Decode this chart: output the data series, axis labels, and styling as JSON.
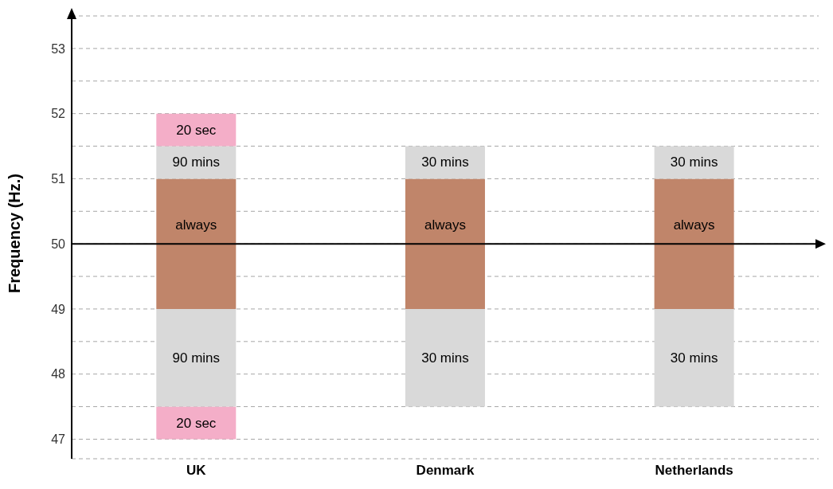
{
  "chart_data": {
    "type": "bar",
    "ylabel": "Frequency (Hz.)",
    "categories": [
      "UK",
      "Denmark",
      "Netherlands"
    ],
    "series": [
      {
        "name": "20 sec",
        "color": "#f4aec8",
        "base": [
          47,
          null,
          null
        ],
        "values": [
          0.5,
          null,
          null
        ]
      },
      {
        "name": "90 mins",
        "color": "#d9d9d9",
        "base": [
          47.5,
          null,
          null
        ],
        "values": [
          1.5,
          null,
          null
        ]
      },
      {
        "name": "30 mins",
        "color": "#d9d9d9",
        "base": [
          null,
          47.5,
          47.5
        ],
        "values": [
          null,
          1.5,
          1.5
        ]
      },
      {
        "name": "always",
        "color": "#c0856a",
        "base": [
          49,
          49,
          49
        ],
        "values": [
          2,
          2,
          2
        ]
      },
      {
        "name": "90 mins",
        "color": "#d9d9d9",
        "base": [
          51,
          null,
          null
        ],
        "values": [
          0.5,
          null,
          null
        ]
      },
      {
        "name": "30 mins",
        "color": "#d9d9d9",
        "base": [
          null,
          51,
          51
        ],
        "values": [
          null,
          0.5,
          0.5
        ]
      },
      {
        "name": "20 sec",
        "color": "#f4aec8",
        "base": [
          51.5,
          null,
          null
        ],
        "values": [
          0.5,
          null,
          null
        ]
      }
    ],
    "ylim": [
      46.7,
      53.5
    ],
    "yticks": [
      47,
      {
        "value": 47.5,
        "label": null
      },
      48,
      {
        "value": 48.5,
        "label": null
      },
      49,
      {
        "value": 49.5,
        "label": null
      },
      50,
      {
        "value": 50.5,
        "label": null
      },
      51,
      {
        "value": 51.5,
        "label": null
      },
      52,
      {
        "value": 52.5,
        "label": null
      },
      53
    ],
    "grid": "y",
    "ref_lines": [
      {
        "axis": "y",
        "value": 50,
        "color": "#000000"
      }
    ]
  }
}
